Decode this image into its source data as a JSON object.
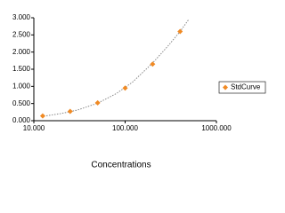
{
  "chart_data": {
    "type": "scatter",
    "x_label": "Concentrations",
    "xlog": true,
    "xlim": [
      10,
      1000
    ],
    "xticks": [
      {
        "value": 10,
        "label": "10.000"
      },
      {
        "value": 100,
        "label": "100.000"
      },
      {
        "value": 1000,
        "label": "1000.000"
      }
    ],
    "ylim": [
      0,
      3
    ],
    "yticks": [
      {
        "value": 0,
        "label": "0.000"
      },
      {
        "value": 0.5,
        "label": "0.500"
      },
      {
        "value": 1,
        "label": "1.000"
      },
      {
        "value": 1.5,
        "label": "1.500"
      },
      {
        "value": 2,
        "label": "2.000"
      },
      {
        "value": 2.5,
        "label": "2.500"
      },
      {
        "value": 3,
        "label": "3.000"
      }
    ],
    "legend": "right",
    "series": [
      {
        "name": "StdCurve",
        "color": "#f08a24",
        "x": [
          12.5,
          25,
          50,
          100,
          200,
          400
        ],
        "values": [
          0.14,
          0.27,
          0.52,
          0.95,
          1.65,
          2.6
        ]
      }
    ],
    "trendline": {
      "color": "#888888",
      "x": [
        12,
        20,
        30,
        50,
        80,
        120,
        200,
        300,
        400,
        500
      ],
      "values": [
        0.12,
        0.21,
        0.31,
        0.51,
        0.79,
        1.12,
        1.68,
        2.2,
        2.6,
        2.96
      ]
    }
  }
}
